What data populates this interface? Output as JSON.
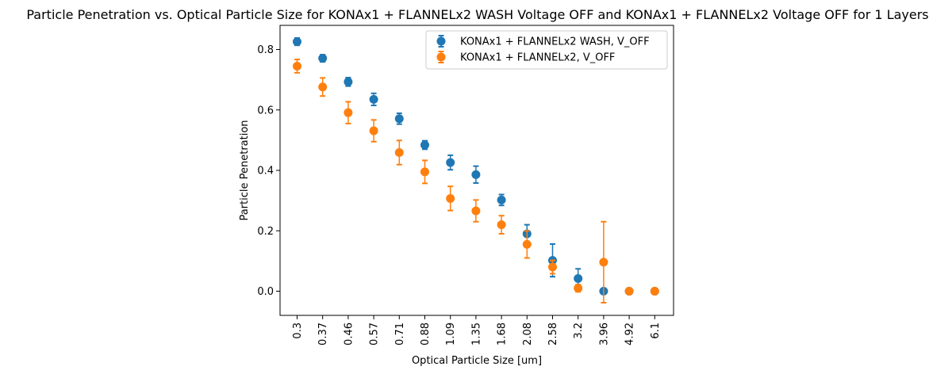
{
  "chart_data": {
    "type": "scatter",
    "title": "Particle Penetration vs. Optical Particle Size for KONAx1 + FLANNELx2 WASH Voltage OFF and KONAx1 + FLANNELx2 Voltage OFF for 1 Layers",
    "xlabel": "Optical Particle Size [um]",
    "ylabel": "Particle Penetration",
    "categories": [
      "0.3",
      "0.37",
      "0.46",
      "0.57",
      "0.71",
      "0.88",
      "1.09",
      "1.35",
      "1.68",
      "2.08",
      "2.58",
      "3.2",
      "3.96",
      "4.92",
      "6.1"
    ],
    "ylim": [
      -0.08,
      0.88
    ],
    "yticks": [
      "0.0",
      "0.2",
      "0.4",
      "0.6",
      "0.8"
    ],
    "legend_position": "top-right",
    "grid": false,
    "series": [
      {
        "name": "KONAx1 + FLANNELx2 WASH, V_OFF",
        "color": "#1f77b4",
        "values": [
          0.826,
          0.771,
          0.693,
          0.635,
          0.571,
          0.484,
          0.426,
          0.386,
          0.302,
          0.19,
          0.102,
          0.042,
          0.0,
          0.0,
          0.0
        ],
        "errors": [
          0.012,
          0.012,
          0.014,
          0.02,
          0.018,
          0.014,
          0.024,
          0.028,
          0.018,
          0.03,
          0.054,
          0.032,
          0.0,
          0.0,
          0.0
        ]
      },
      {
        "name": "KONAx1 + FLANNELx2, V_OFF",
        "color": "#ff7f0e",
        "values": [
          0.745,
          0.676,
          0.591,
          0.531,
          0.459,
          0.395,
          0.307,
          0.266,
          0.22,
          0.155,
          0.08,
          0.01,
          0.096,
          0.0,
          0.0
        ],
        "errors": [
          0.022,
          0.03,
          0.036,
          0.036,
          0.04,
          0.038,
          0.04,
          0.036,
          0.03,
          0.045,
          0.022,
          0.012,
          0.134,
          0.0,
          0.0
        ]
      }
    ]
  }
}
